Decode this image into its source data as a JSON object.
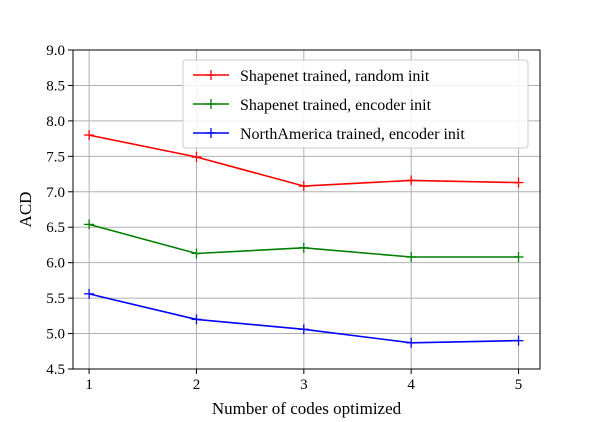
{
  "chart_data": {
    "type": "line",
    "xlabel": "Number of codes optimized",
    "ylabel": "ACD",
    "x": [
      1,
      2,
      3,
      4,
      5
    ],
    "x_ticks": [
      "1",
      "2",
      "3",
      "4",
      "5"
    ],
    "xlim": [
      0.85,
      5.2
    ],
    "ylim": [
      4.5,
      9.0
    ],
    "y_ticks": [
      "4.5",
      "5.0",
      "5.5",
      "6.0",
      "6.5",
      "7.0",
      "7.5",
      "8.0",
      "8.5",
      "9.0"
    ],
    "grid": true,
    "legend_position": "top-right",
    "marker": "+",
    "series": [
      {
        "name": "Shapenet trained, random init",
        "color": "#ff0000",
        "values": [
          7.8,
          7.49,
          7.08,
          7.16,
          7.13
        ]
      },
      {
        "name": "Shapenet trained, encoder init",
        "color": "#008000",
        "values": [
          6.54,
          6.13,
          6.21,
          6.08,
          6.08
        ]
      },
      {
        "name": "NorthAmerica trained, encoder init",
        "color": "#0000ff",
        "values": [
          5.56,
          5.2,
          5.06,
          4.87,
          4.9
        ]
      }
    ]
  }
}
